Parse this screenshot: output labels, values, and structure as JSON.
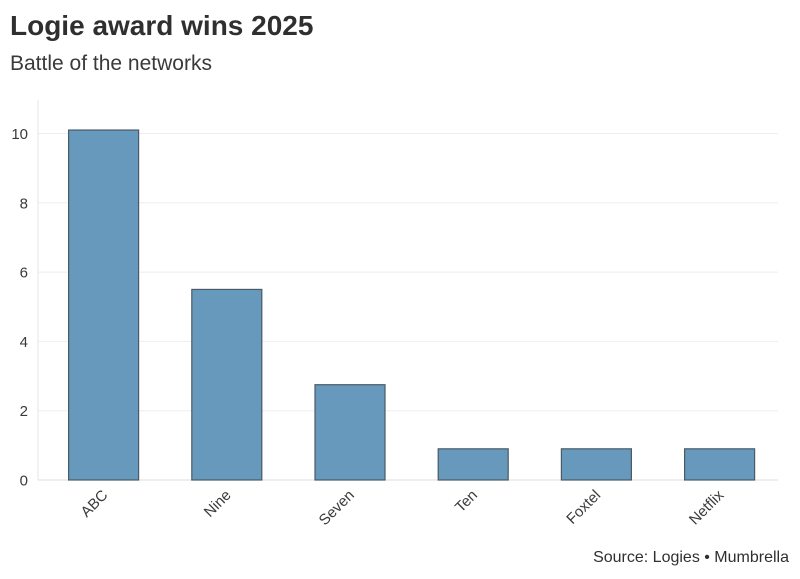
{
  "chart_data": {
    "type": "bar",
    "title": "Logie award wins 2025",
    "subtitle": "Battle of the networks",
    "source": "Source: Logies • Mumbrella",
    "xlabel": "",
    "ylabel": "",
    "categories": [
      "ABC",
      "Nine",
      "Seven",
      "Ten",
      "Foxtel",
      "Netflix"
    ],
    "values": [
      10.1,
      5.5,
      2.75,
      0.9,
      0.9,
      0.9
    ],
    "ylim": [
      0,
      11
    ],
    "yticks": [
      0,
      2,
      4,
      6,
      8,
      10
    ],
    "grid": true,
    "legend": "none",
    "bar_color": "#6699bb",
    "bar_edge_color": "#4a5a66"
  }
}
